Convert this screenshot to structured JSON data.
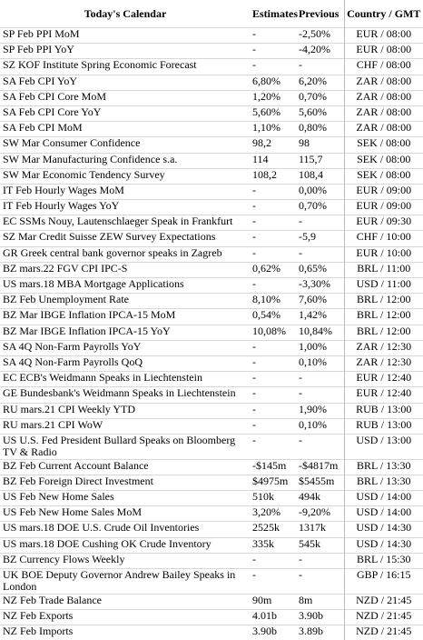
{
  "header": {
    "title": "Today's Calendar",
    "estimates": "Estimates",
    "previous": "Previous",
    "country": "Country / GMT"
  },
  "table": {
    "rows": [
      [
        "SP Feb PPI MoM",
        "-",
        "-2,50%",
        "EUR / 08:00"
      ],
      [
        "SP Feb PPI YoY",
        "-",
        "-4,20%",
        "EUR / 08:00"
      ],
      [
        "SZ KOF Institute Spring Economic Forecast",
        "-",
        "-",
        "CHF / 08:00"
      ],
      [
        "SA Feb CPI YoY",
        "6,80%",
        "6,20%",
        "ZAR / 08:00"
      ],
      [
        "SA Feb CPI Core MoM",
        "1,20%",
        "0,70%",
        "ZAR / 08:00"
      ],
      [
        "SA Feb CPI Core YoY",
        "5,60%",
        "5,60%",
        "ZAR / 08:00"
      ],
      [
        "SA Feb CPI MoM",
        "1,10%",
        "0,80%",
        "ZAR / 08:00"
      ],
      [
        "SW Mar Consumer Confidence",
        "98,2",
        "98",
        "SEK / 08:00"
      ],
      [
        "SW Mar Manufacturing Confidence s.a.",
        "114",
        "115,7",
        "SEK / 08:00"
      ],
      [
        "SW Mar Economic Tendency Survey",
        "108,2",
        "108,4",
        "SEK / 08:00"
      ],
      [
        "IT Feb Hourly Wages MoM",
        "-",
        "0,00%",
        "EUR / 09:00"
      ],
      [
        "IT Feb Hourly Wages YoY",
        "-",
        "0,70%",
        "EUR / 09:00"
      ],
      [
        "EC SSMs Nouy, Lautenschlaeger Speak in Frankfurt",
        "-",
        "-",
        "EUR / 09:30"
      ],
      [
        "SZ Mar Credit Suisse ZEW Survey Expectations",
        "-",
        "-5,9",
        "CHF / 10:00"
      ],
      [
        "GR Greek central bank governor speaks in Zagreb",
        "-",
        "-",
        "EUR / 10:00"
      ],
      [
        "BZ mars.22 FGV CPI IPC-S",
        "0,62%",
        "0,65%",
        "BRL / 11:00"
      ],
      [
        "US mars.18 MBA Mortgage Applications",
        "-",
        "-3,30%",
        "USD / 11:00"
      ],
      [
        "BZ Feb Unemployment Rate",
        "8,10%",
        "7,60%",
        "BRL / 12:00"
      ],
      [
        "BZ Mar IBGE Inflation IPCA-15 MoM",
        "0,54%",
        "1,42%",
        "BRL / 12:00"
      ],
      [
        "BZ Mar IBGE Inflation IPCA-15 YoY",
        "10,08%",
        "10,84%",
        "BRL / 12:00"
      ],
      [
        "SA 4Q Non-Farm Payrolls YoY",
        "-",
        "1,00%",
        "ZAR / 12:30"
      ],
      [
        "SA 4Q Non-Farm Payrolls QoQ",
        "-",
        "0,10%",
        "ZAR / 12:30"
      ],
      [
        "EC ECB's Weidmann Speaks in Liechtenstein",
        "-",
        "-",
        "EUR / 12:40"
      ],
      [
        "GE Bundesbank's Weidmann Speaks in Liechtenstein",
        "-",
        "-",
        "EUR / 12:40"
      ],
      [
        "RU mars.21 CPI Weekly YTD",
        "-",
        "1,90%",
        "RUB / 13:00"
      ],
      [
        "RU mars.21 CPI WoW",
        "-",
        "0,10%",
        "RUB / 13:00"
      ],
      [
        "US U.S. Fed President Bullard Speaks on Bloomberg TV & Radio",
        "-",
        "-",
        "USD / 13:00"
      ],
      [
        "BZ Feb Current Account Balance",
        "-$145m",
        "-$4817m",
        "BRL / 13:30"
      ],
      [
        "BZ Feb Foreign Direct Investment",
        "$4975m",
        "$5455m",
        "BRL / 13:30"
      ],
      [
        "US Feb New Home Sales",
        "510k",
        "494k",
        "USD / 14:00"
      ],
      [
        "US Feb New Home Sales MoM",
        "3,20%",
        "-9,20%",
        "USD / 14:00"
      ],
      [
        "US mars.18 DOE U.S. Crude Oil Inventories",
        "2525k",
        "1317k",
        "USD / 14:30"
      ],
      [
        "US mars.18 DOE Cushing OK Crude Inventory",
        "335k",
        "545k",
        "USD / 14:30"
      ],
      [
        "BZ Currency Flows Weekly",
        "-",
        "-",
        "BRL / 15:30"
      ],
      [
        "UK BOE Deputy Governor Andrew Bailey Speaks in London",
        "-",
        "-",
        "GBP / 16:15"
      ],
      [
        "NZ Feb Trade Balance",
        "90m",
        "8m",
        "NZD / 21:45"
      ],
      [
        "NZ Feb Exports",
        "4.01b",
        "3.90b",
        "NZD / 21:45"
      ],
      [
        "NZ Feb Imports",
        "3.90b",
        "3.89b",
        "NZD / 21:45"
      ]
    ]
  }
}
